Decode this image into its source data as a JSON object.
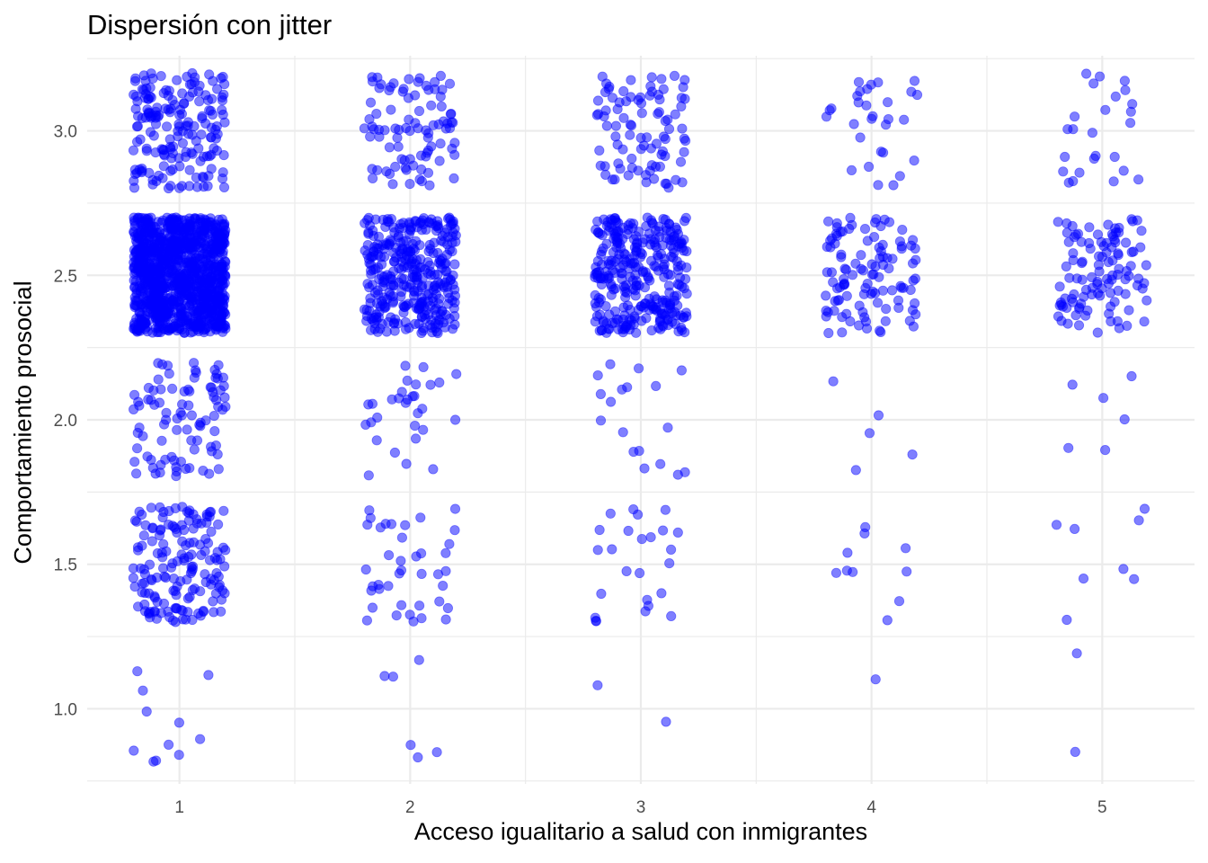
{
  "chart_data": {
    "type": "scatter",
    "title": "Dispersión con jitter",
    "xlabel": "Acceso igualitario a salud con inmigrantes",
    "ylabel": "Comportamiento prosocial",
    "x_ticks": [
      "1",
      "2",
      "3",
      "4",
      "5"
    ],
    "y_ticks": [
      "1.0",
      "1.5",
      "2.0",
      "2.5",
      "3.0"
    ],
    "xlim": [
      0.6,
      5.4
    ],
    "ylim": [
      0.74,
      3.26
    ],
    "jitter": {
      "width": 0.2,
      "height": 0.2
    },
    "grid": true,
    "legend": "none",
    "point_color": "#0000FF",
    "point_alpha": 0.5,
    "counts": [
      [
        11,
        6,
        2,
        1,
        2
      ],
      [
        160,
        40,
        25,
        10,
        8
      ],
      [
        90,
        30,
        18,
        5,
        6
      ],
      [
        1100,
        350,
        320,
        110,
        110
      ],
      [
        180,
        90,
        90,
        30,
        25
      ]
    ]
  }
}
